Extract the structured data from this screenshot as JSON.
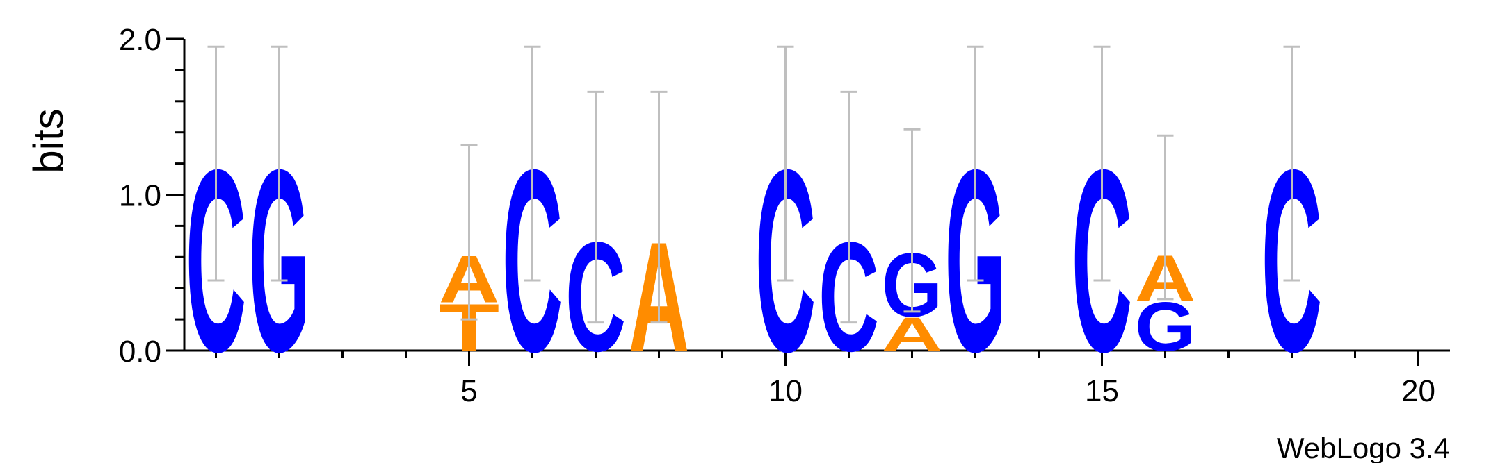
{
  "chart_data": {
    "type": "sequence-logo",
    "ylabel": "bits",
    "ylim": [
      0,
      2
    ],
    "yticks": [
      "0.0",
      "1.0",
      "2.0"
    ],
    "xlim": [
      0.5,
      20.5
    ],
    "xticks": [
      5,
      10,
      15,
      20
    ],
    "credit": "WebLogo 3.4",
    "colors": {
      "A": "#ff8c00",
      "T": "#ff8c00",
      "C": "#0000ff",
      "G": "#0000ff"
    },
    "error_bar_color": "#bfbfbf",
    "positions": [
      {
        "pos": 1,
        "stack": [
          {
            "letter": "C",
            "height": 1.2
          }
        ],
        "error": [
          0.45,
          1.95
        ]
      },
      {
        "pos": 2,
        "stack": [
          {
            "letter": "G",
            "height": 1.2
          }
        ],
        "error": [
          0.45,
          1.95
        ]
      },
      {
        "pos": 5,
        "stack": [
          {
            "letter": "T",
            "height": 0.31
          },
          {
            "letter": "A",
            "height": 0.31
          }
        ],
        "error": [
          0.2,
          1.32
        ]
      },
      {
        "pos": 6,
        "stack": [
          {
            "letter": "C",
            "height": 1.2
          }
        ],
        "error": [
          0.45,
          1.95
        ]
      },
      {
        "pos": 7,
        "stack": [
          {
            "letter": "C",
            "height": 0.72
          }
        ],
        "error": [
          0.18,
          1.66
        ]
      },
      {
        "pos": 8,
        "stack": [
          {
            "letter": "A",
            "height": 0.72
          }
        ],
        "error": [
          0.18,
          1.66
        ]
      },
      {
        "pos": 10,
        "stack": [
          {
            "letter": "C",
            "height": 1.2
          }
        ],
        "error": [
          0.45,
          1.95
        ]
      },
      {
        "pos": 11,
        "stack": [
          {
            "letter": "C",
            "height": 0.72
          }
        ],
        "error": [
          0.18,
          1.66
        ]
      },
      {
        "pos": 12,
        "stack": [
          {
            "letter": "A",
            "height": 0.22
          },
          {
            "letter": "G",
            "height": 0.42
          }
        ],
        "error": [
          0.25,
          1.42
        ]
      },
      {
        "pos": 13,
        "stack": [
          {
            "letter": "G",
            "height": 1.2
          }
        ],
        "error": [
          0.45,
          1.95
        ]
      },
      {
        "pos": 15,
        "stack": [
          {
            "letter": "C",
            "height": 1.2
          }
        ],
        "error": [
          0.45,
          1.95
        ]
      },
      {
        "pos": 16,
        "stack": [
          {
            "letter": "G",
            "height": 0.32
          },
          {
            "letter": "A",
            "height": 0.3
          }
        ],
        "error": [
          0.33,
          1.38
        ]
      },
      {
        "pos": 18,
        "stack": [
          {
            "letter": "C",
            "height": 1.2
          }
        ],
        "error": [
          0.45,
          1.95
        ]
      }
    ]
  }
}
